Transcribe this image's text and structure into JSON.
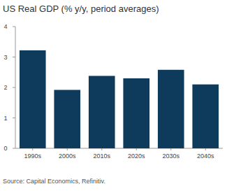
{
  "chart_data": {
    "type": "bar",
    "title": "US Real GDP (% y/y, period averages)",
    "categories": [
      "1990s",
      "2000s",
      "2010s",
      "2020s",
      "2030s",
      "2040s"
    ],
    "values": [
      3.22,
      1.92,
      2.38,
      2.3,
      2.58,
      2.1
    ],
    "color": "#0e3a5c",
    "ylim": [
      0,
      4
    ],
    "yticks": [
      0,
      1,
      2,
      3,
      4
    ],
    "grid": false,
    "source": "Source: Capital Economics, Refinitiv."
  }
}
